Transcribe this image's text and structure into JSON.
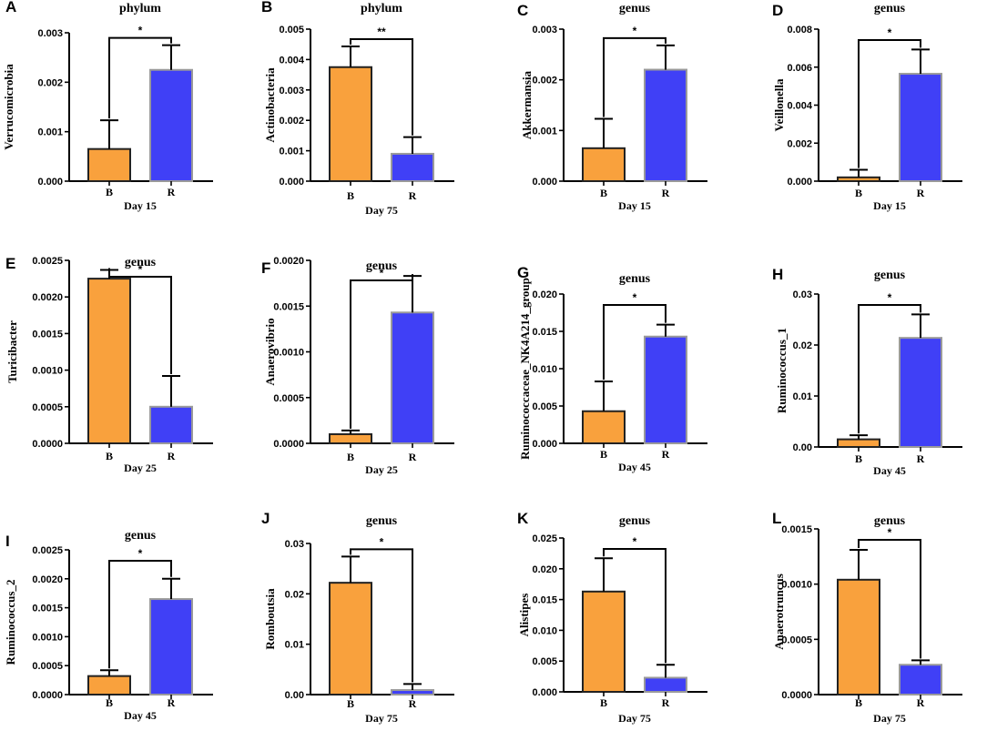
{
  "colors": {
    "B": "#f9a13d",
    "R": "#4040f6",
    "axis": "#000000",
    "bar_border_B": "#222222",
    "bar_border_R": "#9a9a9a"
  },
  "chart_data": [
    {
      "panel": "A",
      "type": "bar",
      "title": "phylum",
      "ylabel": "Verrucomicrobia",
      "xlabel": "Day 15",
      "categories": [
        "B",
        "R"
      ],
      "values": [
        0.00065,
        0.00225
      ],
      "errors": [
        0.00058,
        0.0005
      ],
      "ylim": [
        0,
        0.003
      ],
      "ticks": [
        "0.000",
        "0.001",
        "0.002",
        "0.003"
      ],
      "sig": "*"
    },
    {
      "panel": "B",
      "type": "bar",
      "title": "phylum",
      "ylabel": "Actinobacteria",
      "xlabel": "Day 75",
      "categories": [
        "B",
        "R"
      ],
      "values": [
        0.00375,
        0.0009
      ],
      "errors": [
        0.00068,
        0.00055
      ],
      "ylim": [
        0,
        0.005
      ],
      "ticks": [
        "0.000",
        "0.001",
        "0.002",
        "0.003",
        "0.004",
        "0.005"
      ],
      "sig": "**"
    },
    {
      "panel": "C",
      "type": "bar",
      "title": "genus",
      "ylabel": "Akkermansia",
      "xlabel": "Day 15",
      "categories": [
        "B",
        "R"
      ],
      "values": [
        0.00065,
        0.0022
      ],
      "errors": [
        0.00058,
        0.00048
      ],
      "ylim": [
        0,
        0.003
      ],
      "ticks": [
        "0.000",
        "0.001",
        "0.002",
        "0.003"
      ],
      "sig": "*"
    },
    {
      "panel": "D",
      "type": "bar",
      "title": "genus",
      "ylabel": "Veillonella",
      "xlabel": "Day 15",
      "categories": [
        "B",
        "R"
      ],
      "values": [
        0.0002,
        0.00565
      ],
      "errors": [
        0.0004,
        0.00128
      ],
      "ylim": [
        0,
        0.008
      ],
      "ticks": [
        "0.000",
        "0.002",
        "0.004",
        "0.006",
        "0.008"
      ],
      "sig": "*"
    },
    {
      "panel": "E",
      "type": "bar",
      "title": "genus",
      "ylabel": "Turicibacter",
      "xlabel": "Day 25",
      "categories": [
        "B",
        "R"
      ],
      "values": [
        0.00225,
        0.0005
      ],
      "errors": [
        0.00012,
        0.00042
      ],
      "ylim": [
        0,
        0.0025
      ],
      "ticks": [
        "0.0000",
        "0.0005",
        "0.0010",
        "0.0015",
        "0.0020",
        "0.0025"
      ],
      "sig": "*"
    },
    {
      "panel": "F",
      "type": "bar",
      "title": "genus",
      "ylabel": "Anaerovibrio",
      "xlabel": "Day 25",
      "categories": [
        "B",
        "R"
      ],
      "values": [
        0.0001,
        0.00143
      ],
      "errors": [
        4e-05,
        0.0004
      ],
      "ylim": [
        0,
        0.002
      ],
      "ticks": [
        "0.0000",
        "0.0005",
        "0.0010",
        "0.0015",
        "0.0020"
      ],
      "sig": "*"
    },
    {
      "panel": "G",
      "type": "bar",
      "title": "genus",
      "ylabel": "Ruminococcaceae_NK4A214_group",
      "xlabel": "Day 45",
      "categories": [
        "B",
        "R"
      ],
      "values": [
        0.0043,
        0.0143
      ],
      "errors": [
        0.004,
        0.0016
      ],
      "ylim": [
        0,
        0.02
      ],
      "ticks": [
        "0.000",
        "0.005",
        "0.010",
        "0.015",
        "0.020"
      ],
      "sig": "*"
    },
    {
      "panel": "H",
      "type": "bar",
      "title": "genus",
      "ylabel": "Ruminococcus_1",
      "xlabel": "Day 45",
      "categories": [
        "B",
        "R"
      ],
      "values": [
        0.0015,
        0.0214
      ],
      "errors": [
        0.0008,
        0.0046
      ],
      "ylim": [
        0,
        0.03
      ],
      "ticks": [
        "0.00",
        "0.01",
        "0.02",
        "0.03"
      ],
      "sig": "*"
    },
    {
      "panel": "I",
      "type": "bar",
      "title": "genus",
      "ylabel": "Ruminococcus_2",
      "xlabel": "Day 45",
      "categories": [
        "B",
        "R"
      ],
      "values": [
        0.00032,
        0.00165
      ],
      "errors": [
        0.0001,
        0.00035
      ],
      "ylim": [
        0,
        0.0025
      ],
      "ticks": [
        "0.0000",
        "0.0005",
        "0.0010",
        "0.0015",
        "0.0020",
        "0.0025"
      ],
      "sig": "*"
    },
    {
      "panel": "J",
      "type": "bar",
      "title": "genus",
      "ylabel": "Romboutsia",
      "xlabel": "Day 75",
      "categories": [
        "B",
        "R"
      ],
      "values": [
        0.0222,
        0.0009
      ],
      "errors": [
        0.0052,
        0.0012
      ],
      "ylim": [
        0,
        0.03
      ],
      "ticks": [
        "0.00",
        "0.01",
        "0.02",
        "0.03"
      ],
      "sig": "*"
    },
    {
      "panel": "K",
      "type": "bar",
      "title": "genus",
      "ylabel": "Alistipes",
      "xlabel": "Day 75",
      "categories": [
        "B",
        "R"
      ],
      "values": [
        0.0163,
        0.0023
      ],
      "errors": [
        0.0054,
        0.0021
      ],
      "ylim": [
        0,
        0.025
      ],
      "ticks": [
        "0.000",
        "0.005",
        "0.010",
        "0.015",
        "0.020",
        "0.025"
      ],
      "sig": "*"
    },
    {
      "panel": "L",
      "type": "bar",
      "title": "genus",
      "ylabel": "Anaerotruncus",
      "xlabel": "Day 75",
      "categories": [
        "B",
        "R"
      ],
      "values": [
        0.00104,
        0.00027
      ],
      "errors": [
        0.00027,
        4e-05
      ],
      "ylim": [
        0,
        0.0015
      ],
      "ticks": [
        "0.0000",
        "0.0005",
        "0.0010",
        "0.0015"
      ],
      "sig": "*"
    }
  ]
}
